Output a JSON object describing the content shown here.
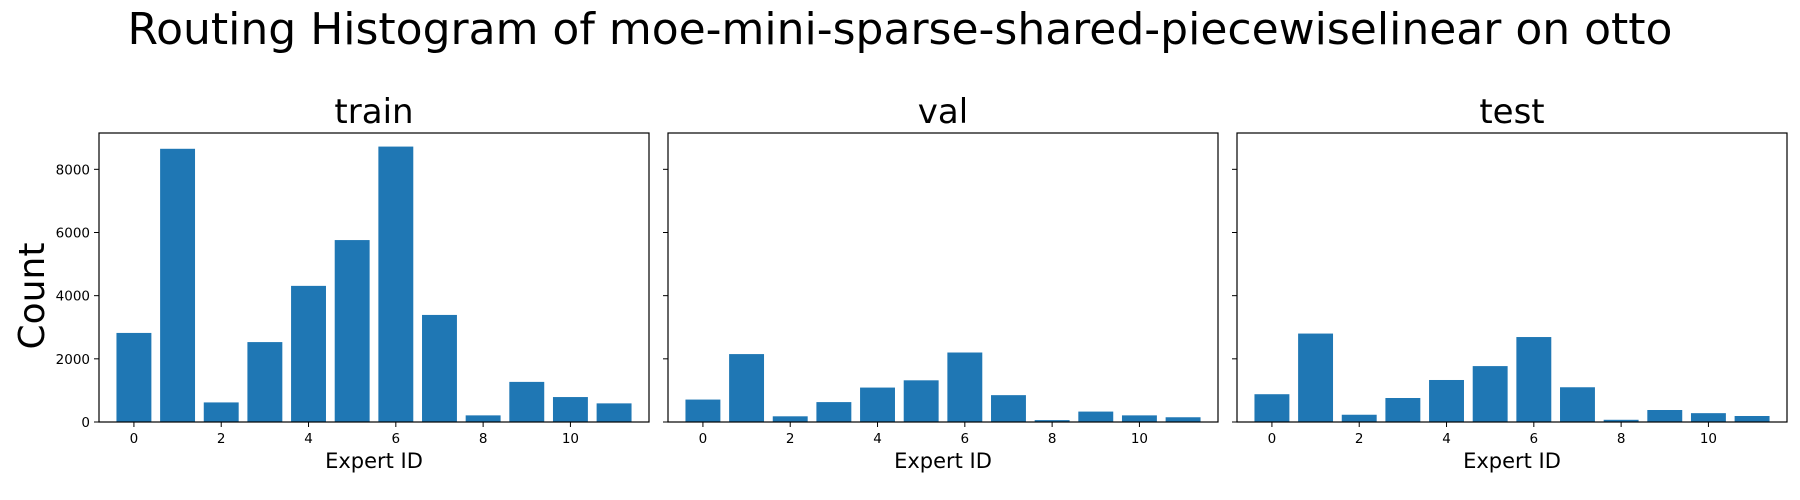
{
  "chart_data": {
    "type": "bar",
    "title": "Routing Histogram of moe-mini-sparse-shared-piecewiselinear on otto",
    "ylabel": "Count",
    "shared_y": true,
    "ylim": [
      0,
      9150
    ],
    "yticks": [
      0,
      2000,
      4000,
      6000,
      8000
    ],
    "bar_color": "#1f77b4",
    "panels": [
      {
        "title": "train",
        "xlabel": "Expert ID",
        "xticks": [
          0,
          2,
          4,
          6,
          8,
          10
        ],
        "categories": [
          0,
          1,
          2,
          3,
          4,
          5,
          6,
          7,
          8,
          9,
          10,
          11
        ],
        "values": [
          2820,
          8650,
          620,
          2530,
          4310,
          5760,
          8720,
          3390,
          210,
          1270,
          790,
          590
        ]
      },
      {
        "title": "val",
        "xlabel": "Expert ID",
        "xticks": [
          0,
          2,
          4,
          6,
          8,
          10
        ],
        "categories": [
          0,
          1,
          2,
          3,
          4,
          5,
          6,
          7,
          8,
          9,
          10,
          11
        ],
        "values": [
          710,
          2150,
          180,
          630,
          1090,
          1320,
          2200,
          850,
          60,
          330,
          210,
          150
        ]
      },
      {
        "title": "test",
        "xlabel": "Expert ID",
        "xticks": [
          0,
          2,
          4,
          6,
          8,
          10
        ],
        "categories": [
          0,
          1,
          2,
          3,
          4,
          5,
          6,
          7,
          8,
          9,
          10,
          11
        ],
        "values": [
          880,
          2800,
          230,
          760,
          1330,
          1770,
          2690,
          1100,
          70,
          380,
          280,
          190
        ]
      }
    ]
  }
}
